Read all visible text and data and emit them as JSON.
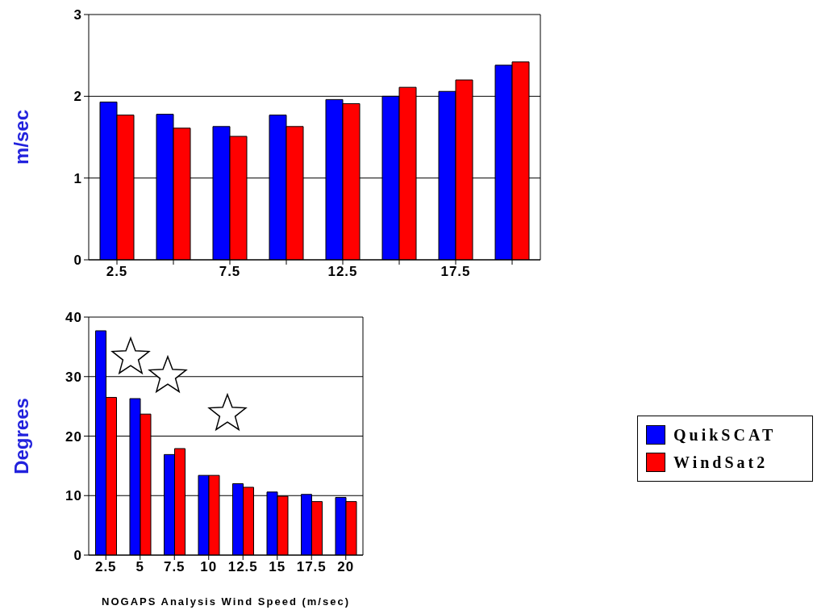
{
  "chart_data": [
    {
      "type": "bar",
      "ylabel": "m/sec",
      "categories": [
        "2.5",
        null,
        "7.5",
        null,
        "12.5",
        null,
        "17.5",
        null
      ],
      "series": [
        {
          "color": "#0000ff",
          "values": [
            1.93,
            1.78,
            1.63,
            1.77,
            1.96,
            2.0,
            2.06,
            2.38
          ]
        },
        {
          "color": "#ff0000",
          "values": [
            1.77,
            1.61,
            1.51,
            1.63,
            1.91,
            2.11,
            2.2,
            2.42
          ]
        }
      ],
      "ylim": [
        0,
        3
      ],
      "yticks": [
        0,
        1,
        2,
        3
      ],
      "grid": "y"
    },
    {
      "type": "bar",
      "ylabel": "Degrees",
      "xlabel": "NOGAPS Analysis Wind Speed (m/sec)",
      "categories": [
        "2.5",
        "5",
        "7.5",
        "10",
        "12.5",
        "15",
        "17.5",
        "20"
      ],
      "series": [
        {
          "name": "QuikSCAT",
          "color": "#0000ff",
          "values": [
            37.7,
            26.3,
            16.9,
            13.4,
            12.0,
            10.6,
            10.2,
            9.7
          ]
        },
        {
          "name": "WindSat2",
          "color": "#ff0000",
          "values": [
            26.5,
            23.7,
            17.9,
            13.4,
            11.4,
            9.9,
            9.0,
            9.0
          ]
        }
      ],
      "ylim": [
        0,
        40
      ],
      "yticks": [
        0,
        10,
        20,
        30,
        40
      ],
      "grid": "y",
      "legend": "right"
    }
  ]
}
